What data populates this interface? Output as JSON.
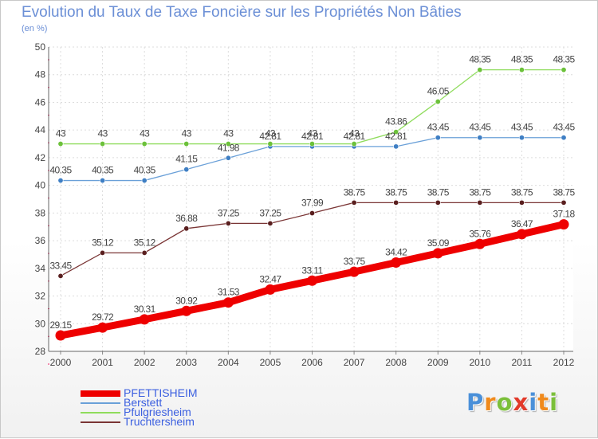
{
  "title": "Evolution du Taux de Taxe Foncière sur les Propriétés Non Bâties",
  "subtitle": "(en %)",
  "logo": {
    "text": "Proxiti",
    "letter_colors": [
      "#4a90d9",
      "#f08a1c",
      "#7bbf3a",
      "#e23a2a",
      "#4a90d9",
      "#f08a1c",
      "#7bbf3a"
    ]
  },
  "chart_data": {
    "type": "line",
    "title": "Evolution du Taux de Taxe Foncière sur les Propriétés Non Bâties",
    "ylabel": "(en %)",
    "xlabel": "",
    "x": [
      "2000",
      "2001",
      "2002",
      "2003",
      "2004",
      "2005",
      "2006",
      "2007",
      "2008",
      "2009",
      "2010",
      "2011",
      "2012"
    ],
    "ylim": [
      28,
      50
    ],
    "yticks": [
      28,
      30,
      32,
      34,
      36,
      38,
      40,
      42,
      44,
      46,
      48,
      50
    ],
    "grid": true,
    "legend_position": "bottom-left",
    "series": [
      {
        "name": "PFETTISHEIM",
        "color": "#ee0000",
        "thick": true,
        "values": [
          29.15,
          29.72,
          30.31,
          30.92,
          31.53,
          32.47,
          33.11,
          33.75,
          34.42,
          35.09,
          35.76,
          36.47,
          37.18
        ],
        "labels": [
          "29.15",
          "29.72",
          "30.31",
          "30.92",
          "31.53",
          "32.47",
          "33.11",
          "33.75",
          "34.42",
          "35.09",
          "35.76",
          "36.47",
          "37.18"
        ]
      },
      {
        "name": "Berstett",
        "color": "#6aa0d8",
        "marker": "#3f7fc4",
        "values": [
          40.35,
          40.35,
          40.35,
          41.15,
          41.98,
          42.81,
          42.81,
          42.81,
          42.81,
          43.45,
          43.45,
          43.45,
          43.45
        ],
        "labels": [
          "40.35",
          "40.35",
          "40.35",
          "41.15",
          "41.98",
          "42.81",
          "42.81",
          "42.81",
          "42.81",
          "43.45",
          "43.45",
          "43.45",
          "43.45"
        ]
      },
      {
        "name": "Pfulgriesheim",
        "color": "#8fdc5c",
        "marker": "#6cc13a",
        "values": [
          43,
          43,
          43,
          43,
          43,
          43,
          43,
          43,
          43.86,
          46.05,
          48.35,
          48.35,
          48.35
        ],
        "labels": [
          "43",
          "43",
          "43",
          "43",
          "43",
          "43",
          "43",
          "43",
          "43.86",
          "46.05",
          "48.35",
          "48.35",
          "48.35"
        ]
      },
      {
        "name": "Truchtersheim",
        "color": "#7a3535",
        "marker": "#5a1f1f",
        "values": [
          33.45,
          35.12,
          35.12,
          36.88,
          37.25,
          37.25,
          37.99,
          38.75,
          38.75,
          38.75,
          38.75,
          38.75,
          38.75
        ],
        "labels": [
          "33.45",
          "35.12",
          "35.12",
          "36.88",
          "37.25",
          "37.25",
          "37.99",
          "38.75",
          "38.75",
          "38.75",
          "38.75",
          "38.75",
          "38.75"
        ]
      }
    ]
  }
}
